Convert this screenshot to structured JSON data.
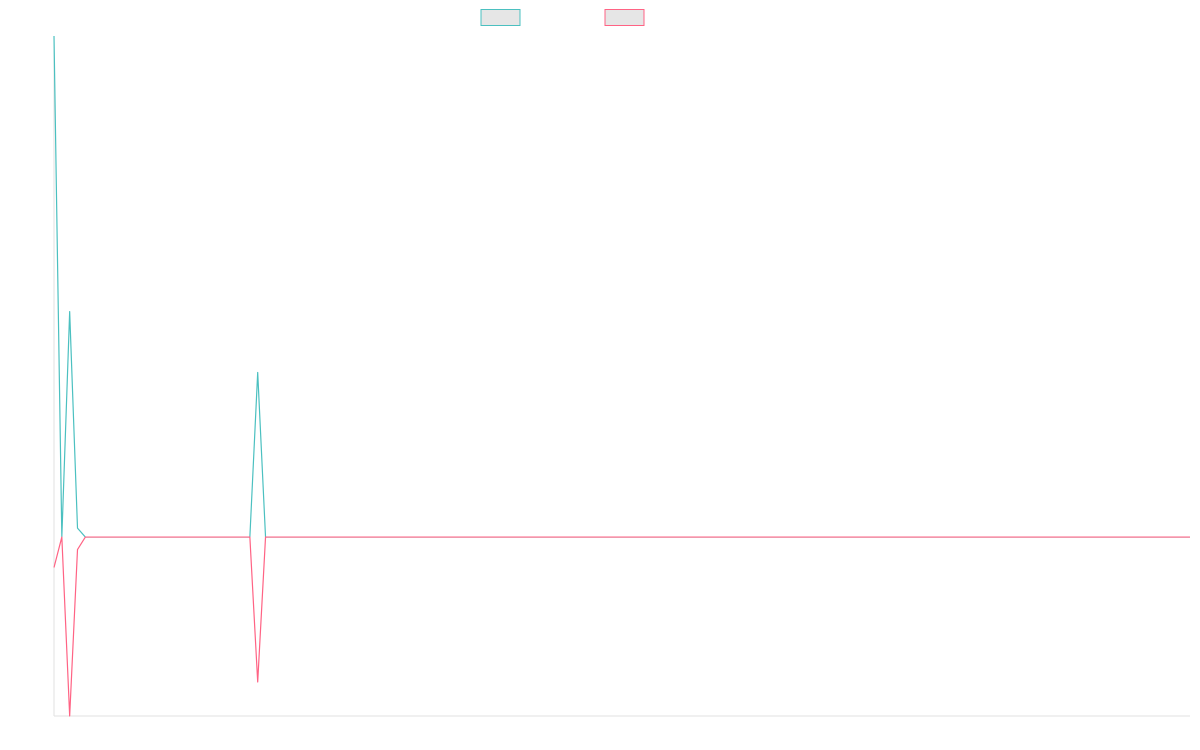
{
  "chart_data": {
    "type": "line",
    "title": "",
    "xlabel": "",
    "ylabel": "",
    "legend_position": "top-center",
    "grid": false,
    "x": [
      0,
      1,
      2,
      3,
      4,
      5,
      6,
      7,
      8,
      9,
      10,
      11,
      12,
      13,
      14,
      15,
      16,
      17,
      18,
      19,
      20,
      21,
      22,
      23,
      24,
      25,
      26,
      27,
      28,
      29,
      30,
      31,
      32,
      33,
      34,
      35,
      36,
      37,
      38,
      39,
      40,
      41,
      42,
      43,
      44,
      45,
      46,
      47,
      48,
      49,
      50,
      51,
      52,
      53,
      54,
      55,
      56,
      57,
      58,
      59,
      60,
      61,
      62,
      63,
      64,
      65,
      66,
      67,
      68,
      69,
      70,
      71,
      72,
      73,
      74,
      75,
      76,
      77,
      78,
      79,
      80,
      81,
      82,
      83,
      84,
      85,
      86,
      87,
      88,
      89,
      90,
      91,
      92,
      93,
      94,
      95,
      96,
      97,
      98,
      99,
      100,
      101,
      102,
      103,
      104,
      105,
      106,
      107,
      108,
      109,
      110,
      111,
      112,
      113,
      114,
      115,
      116,
      117,
      118,
      119,
      120,
      121,
      122,
      123,
      124,
      125,
      126,
      127,
      128,
      129,
      130,
      131,
      132,
      133,
      134,
      135,
      136,
      137,
      138,
      139,
      140,
      141,
      142,
      143,
      144,
      145
    ],
    "xlim": [
      0,
      145
    ],
    "ylim": [
      -100,
      280
    ],
    "series": [
      {
        "color": "#4bc0c0",
        "fill": "#e6e6e6",
        "values": [
          280,
          0,
          126,
          5,
          0,
          0,
          0,
          0,
          0,
          0,
          0,
          0,
          0,
          0,
          0,
          0,
          0,
          0,
          0,
          0,
          0,
          0,
          0,
          0,
          0,
          0,
          92,
          0,
          0,
          0,
          0,
          0,
          0,
          0,
          0,
          0,
          0,
          0,
          0,
          0,
          0,
          0,
          0,
          0,
          0,
          0,
          0,
          0,
          0,
          0,
          0,
          0,
          0,
          0,
          0,
          0,
          0,
          0,
          0,
          0,
          0,
          0,
          0,
          0,
          0,
          0,
          0,
          0,
          0,
          0,
          0,
          0,
          0,
          0,
          0,
          0,
          0,
          0,
          0,
          0,
          0,
          0,
          0,
          0,
          0,
          0,
          0,
          0,
          0,
          0,
          0,
          0,
          0,
          0,
          0,
          0,
          0,
          0,
          0,
          0,
          0,
          0,
          0,
          0,
          0,
          0,
          0,
          0,
          0,
          0,
          0,
          0,
          0,
          0,
          0,
          0,
          0,
          0,
          0,
          0,
          0,
          0,
          0,
          0,
          0,
          0,
          0,
          0,
          0,
          0,
          0,
          0,
          0,
          0,
          0,
          0,
          0,
          0,
          0,
          0,
          0,
          0,
          0,
          0,
          0,
          0
        ]
      },
      {
        "color": "#ff6384",
        "fill": "#e6e6e6",
        "values": [
          -17,
          0,
          -100,
          -7,
          0,
          0,
          0,
          0,
          0,
          0,
          0,
          0,
          0,
          0,
          0,
          0,
          0,
          0,
          0,
          0,
          0,
          0,
          0,
          0,
          0,
          0,
          -81,
          0,
          0,
          0,
          0,
          0,
          0,
          0,
          0,
          0,
          0,
          0,
          0,
          0,
          0,
          0,
          0,
          0,
          0,
          0,
          0,
          0,
          0,
          0,
          0,
          0,
          0,
          0,
          0,
          0,
          0,
          0,
          0,
          0,
          0,
          0,
          0,
          0,
          0,
          0,
          0,
          0,
          0,
          0,
          0,
          0,
          0,
          0,
          0,
          0,
          0,
          0,
          0,
          0,
          0,
          0,
          0,
          0,
          0,
          0,
          0,
          0,
          0,
          0,
          0,
          0,
          0,
          0,
          0,
          0,
          0,
          0,
          0,
          0,
          0,
          0,
          0,
          0,
          0,
          0,
          0,
          0,
          0,
          0,
          0,
          0,
          0,
          0,
          0,
          0,
          0,
          0,
          0,
          0,
          0,
          0,
          0,
          0,
          0,
          0,
          0,
          0,
          0,
          0,
          0,
          0,
          0,
          0,
          0,
          0,
          0,
          0,
          0,
          0,
          0,
          0,
          0,
          0,
          0,
          0
        ]
      }
    ]
  }
}
